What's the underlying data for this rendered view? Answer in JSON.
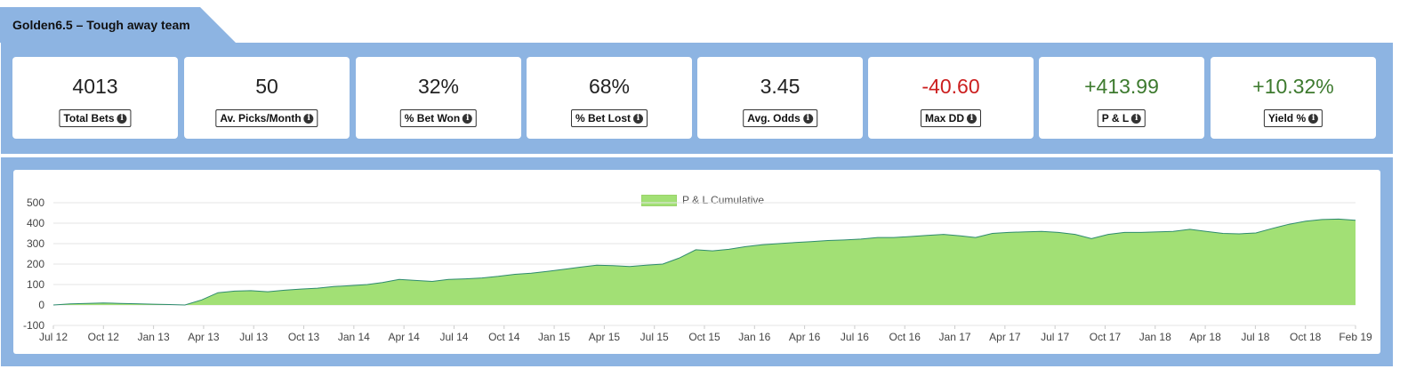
{
  "header": {
    "title": "Golden6.5 – Tough away team"
  },
  "stats": [
    {
      "value": "4013",
      "label": "Total Bets",
      "tone": "neutral"
    },
    {
      "value": "50",
      "label": "Av. Picks/Month",
      "tone": "neutral"
    },
    {
      "value": "32%",
      "label": "% Bet Won",
      "tone": "neutral"
    },
    {
      "value": "68%",
      "label": "% Bet Lost",
      "tone": "neutral"
    },
    {
      "value": "3.45",
      "label": "Avg. Odds",
      "tone": "neutral"
    },
    {
      "value": "-40.60",
      "label": "Max DD",
      "tone": "neg"
    },
    {
      "value": "+413.99",
      "label": "P & L",
      "tone": "pos"
    },
    {
      "value": "+10.32%",
      "label": "Yield %",
      "tone": "pos"
    }
  ],
  "info_icon": "info-circle-icon",
  "chart_data": {
    "type": "area",
    "legend": {
      "label": "P & L Cumulative",
      "position": "top-center"
    },
    "colors": {
      "fill": "#a2e075",
      "line": "#2e8b6e",
      "grid": "#e6e6e6"
    },
    "ylim": [
      -100,
      500
    ],
    "yticks": [
      "500",
      "400",
      "300",
      "200",
      "100",
      "0",
      "-100"
    ],
    "xticks": [
      "Jul 12",
      "Oct 12",
      "Jan 13",
      "Apr 13",
      "Jul 13",
      "Oct 13",
      "Jan 14",
      "Apr 14",
      "Jul 14",
      "Oct 14",
      "Jan 15",
      "Apr 15",
      "Jul 15",
      "Oct 15",
      "Jan 16",
      "Apr 16",
      "Jul 16",
      "Oct 16",
      "Jan 17",
      "Apr 17",
      "Jul 17",
      "Oct 17",
      "Jan 18",
      "Apr 18",
      "Jul 18",
      "Oct 18",
      "Feb 19"
    ],
    "grid": true,
    "series": [
      {
        "name": "P & L Cumulative",
        "x": [
          "2012-07",
          "2012-08",
          "2012-09",
          "2012-10",
          "2012-11",
          "2012-12",
          "2013-01",
          "2013-02",
          "2013-03",
          "2013-04",
          "2013-05",
          "2013-06",
          "2013-07",
          "2013-08",
          "2013-09",
          "2013-10",
          "2013-11",
          "2013-12",
          "2014-01",
          "2014-02",
          "2014-03",
          "2014-04",
          "2014-05",
          "2014-06",
          "2014-07",
          "2014-08",
          "2014-09",
          "2014-10",
          "2014-11",
          "2014-12",
          "2015-01",
          "2015-02",
          "2015-03",
          "2015-04",
          "2015-05",
          "2015-06",
          "2015-07",
          "2015-08",
          "2015-09",
          "2015-10",
          "2015-11",
          "2015-12",
          "2016-01",
          "2016-02",
          "2016-03",
          "2016-04",
          "2016-05",
          "2016-06",
          "2016-07",
          "2016-08",
          "2016-09",
          "2016-10",
          "2016-11",
          "2016-12",
          "2017-01",
          "2017-02",
          "2017-03",
          "2017-04",
          "2017-05",
          "2017-06",
          "2017-07",
          "2017-08",
          "2017-09",
          "2017-10",
          "2017-11",
          "2017-12",
          "2018-01",
          "2018-02",
          "2018-03",
          "2018-04",
          "2018-05",
          "2018-06",
          "2018-07",
          "2018-08",
          "2018-09",
          "2018-10",
          "2018-11",
          "2018-12",
          "2019-01",
          "2019-02"
        ],
        "values": [
          0,
          5,
          8,
          10,
          8,
          6,
          4,
          2,
          0,
          25,
          60,
          68,
          70,
          65,
          72,
          78,
          82,
          90,
          95,
          100,
          110,
          125,
          120,
          115,
          125,
          128,
          132,
          140,
          150,
          155,
          165,
          175,
          185,
          195,
          192,
          188,
          195,
          200,
          230,
          270,
          265,
          272,
          285,
          295,
          300,
          305,
          310,
          315,
          318,
          322,
          330,
          330,
          335,
          340,
          345,
          338,
          330,
          350,
          355,
          358,
          360,
          355,
          345,
          325,
          345,
          355,
          355,
          358,
          360,
          370,
          360,
          350,
          348,
          352,
          375,
          395,
          410,
          418,
          420,
          414
        ]
      }
    ]
  }
}
